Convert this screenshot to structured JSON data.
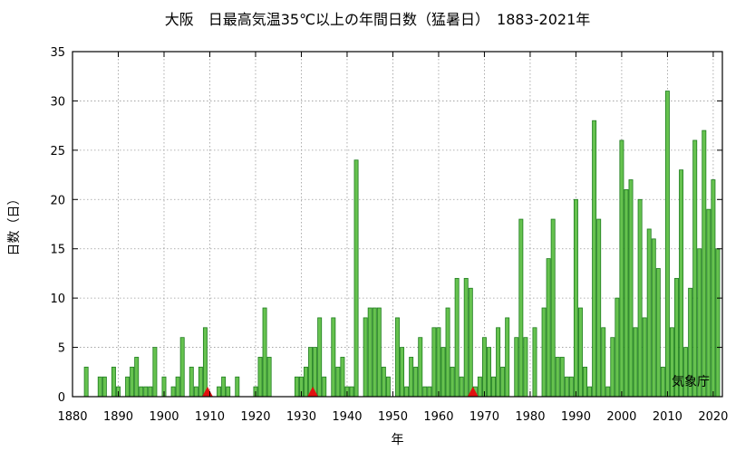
{
  "chart_data": {
    "type": "bar",
    "title": "大阪　日最高気温35℃以上の年間日数（猛暑日）　1883-2021年",
    "xlabel": "年",
    "ylabel": "日数（日）",
    "xlim": [
      1880,
      2022
    ],
    "ylim": [
      0,
      35
    ],
    "x_ticks": [
      1880,
      1890,
      1900,
      1910,
      1920,
      1930,
      1940,
      1950,
      1960,
      1970,
      1980,
      1990,
      2000,
      2010,
      2020
    ],
    "y_ticks": [
      0,
      5,
      10,
      15,
      20,
      25,
      30,
      35
    ],
    "grid": true,
    "source": "気象庁",
    "marker_color": "#e01010",
    "bar_color": "#66c24f",
    "station_change_markers": [
      1909,
      1932,
      1967
    ],
    "x": [
      1883,
      1884,
      1885,
      1886,
      1887,
      1888,
      1889,
      1890,
      1891,
      1892,
      1893,
      1894,
      1895,
      1896,
      1897,
      1898,
      1899,
      1900,
      1901,
      1902,
      1903,
      1904,
      1905,
      1906,
      1907,
      1908,
      1909,
      1910,
      1911,
      1912,
      1913,
      1914,
      1915,
      1916,
      1917,
      1918,
      1919,
      1920,
      1921,
      1922,
      1923,
      1924,
      1925,
      1926,
      1927,
      1928,
      1929,
      1930,
      1931,
      1932,
      1933,
      1934,
      1935,
      1936,
      1937,
      1938,
      1939,
      1940,
      1941,
      1942,
      1943,
      1944,
      1945,
      1946,
      1947,
      1948,
      1949,
      1950,
      1951,
      1952,
      1953,
      1954,
      1955,
      1956,
      1957,
      1958,
      1959,
      1960,
      1961,
      1962,
      1963,
      1964,
      1965,
      1966,
      1967,
      1968,
      1969,
      1970,
      1971,
      1972,
      1973,
      1974,
      1975,
      1976,
      1977,
      1978,
      1979,
      1980,
      1981,
      1982,
      1983,
      1984,
      1985,
      1986,
      1987,
      1988,
      1989,
      1990,
      1991,
      1992,
      1993,
      1994,
      1995,
      1996,
      1997,
      1998,
      1999,
      2000,
      2001,
      2002,
      2003,
      2004,
      2005,
      2006,
      2007,
      2008,
      2009,
      2010,
      2011,
      2012,
      2013,
      2014,
      2015,
      2016,
      2017,
      2018,
      2019,
      2020,
      2021
    ],
    "values": [
      3,
      0,
      0,
      2,
      2,
      0,
      3,
      1,
      0,
      2,
      3,
      4,
      1,
      1,
      1,
      5,
      0,
      2,
      0,
      1,
      2,
      6,
      0,
      3,
      1,
      3,
      7,
      0,
      0,
      1,
      2,
      1,
      0,
      2,
      0,
      0,
      0,
      1,
      4,
      9,
      4,
      0,
      0,
      0,
      0,
      0,
      2,
      2,
      3,
      5,
      5,
      8,
      2,
      0,
      8,
      3,
      4,
      1,
      1,
      24,
      0,
      8,
      9,
      9,
      9,
      3,
      2,
      0,
      8,
      5,
      1,
      4,
      3,
      6,
      1,
      1,
      7,
      7,
      5,
      9,
      3,
      12,
      2,
      12,
      11,
      1,
      2,
      6,
      5,
      2,
      7,
      3,
      8,
      0,
      6,
      18,
      6,
      0,
      7,
      0,
      9,
      14,
      18,
      4,
      4,
      2,
      2,
      20,
      9,
      3,
      1,
      28,
      18,
      7,
      1,
      6,
      10,
      26,
      21,
      22,
      7,
      20,
      8,
      17,
      16,
      13,
      3,
      31,
      7,
      12,
      23,
      5,
      11,
      26,
      15,
      27,
      19,
      22,
      15
    ]
  }
}
